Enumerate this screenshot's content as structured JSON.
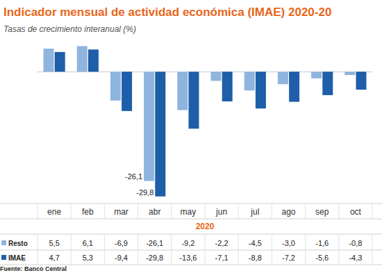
{
  "chart_data": {
    "type": "bar",
    "title": "Indicador mensual de actividad económica (IMAE) 2020-20",
    "subtitle": "Tasas de crecimiento interanual (%)",
    "categories": [
      "ene",
      "feb",
      "mar",
      "abr",
      "may",
      "jun",
      "jul",
      "ago",
      "sep",
      "oct"
    ],
    "xlabel": "2020",
    "series": [
      {
        "name": "Resto",
        "color": "#8fb4de",
        "values": [
          5.5,
          6.1,
          -6.9,
          -26.1,
          -9.2,
          -2.2,
          -4.5,
          -3.0,
          -1.6,
          -0.8
        ],
        "value_labels": [
          "5,5",
          "6,1",
          "-6,9",
          "-26,1",
          "-9,2",
          "-2,2",
          "-4,5",
          "-3,0",
          "-1,6",
          "-0,8"
        ]
      },
      {
        "name": "IMAE",
        "color": "#1f5ea8",
        "values": [
          4.7,
          5.3,
          -9.4,
          -29.8,
          -13.6,
          -7.1,
          -8.8,
          -7.2,
          -5.6,
          -4.3
        ],
        "value_labels": [
          "4,7",
          "5,3",
          "-9,4",
          "-29,8",
          "-13,6",
          "-7,1",
          "-8,8",
          "-7,2",
          "-5,6",
          "-4,3"
        ]
      }
    ],
    "annotations": [
      {
        "category": "abr",
        "series": "Resto",
        "text": "-26,1"
      },
      {
        "category": "abr",
        "series": "IMAE",
        "text": "-29,8"
      }
    ],
    "source": "Fuente: Banco Central",
    "ylim": [
      -31,
      6.5
    ],
    "tick_labels": false,
    "grid": false
  }
}
